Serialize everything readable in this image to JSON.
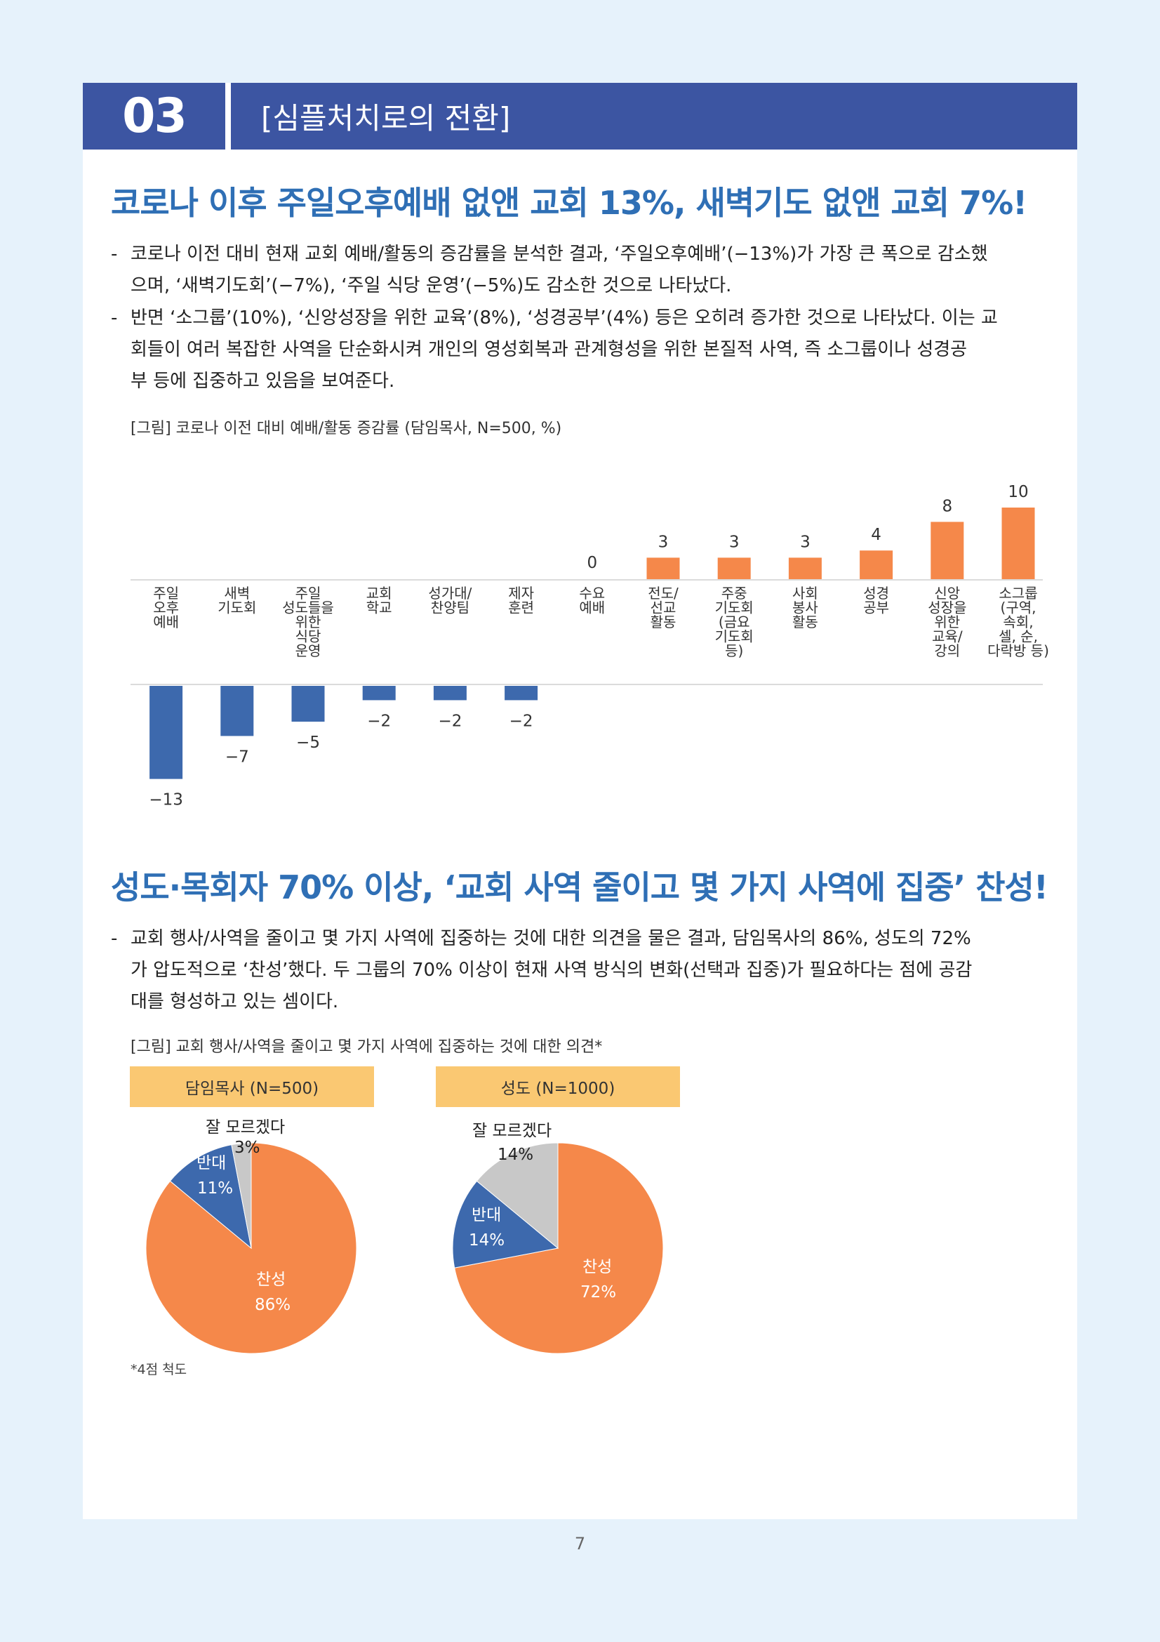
{
  "header": {
    "number": "03",
    "title": "[심플처치로의 전환]"
  },
  "section1": {
    "heading": "코로나 이후 주일오후예배 없앤 교회 13%, 새벽기도 없앤 교회 7%!",
    "bullets": [
      [
        "코로나 이전 대비 현재 교회 예배/활동의 증감률을 분석한 결과, ‘주일오후예배’(−13%)가 가장 큰 폭으로 감소했",
        "으며, ‘새벽기도회’(−7%), ‘주일 식당 운영’(−5%)도 감소한 것으로 나타났다."
      ],
      [
        "반면 ‘소그룹’(10%), ‘신앙성장을 위한 교육’(8%), ‘성경공부’(4%) 등은 오히려 증가한 것으로 나타났다. 이는 교",
        "회들이 여러 복잡한 사역을 단순화시켜 개인의 영성회복과 관계형성을 위한 본질적 사역, 즉 소그룹이나 성경공",
        "부 등에 집중하고 있음을 보여준다."
      ]
    ],
    "figure_caption": "[그림] 코로나 이전 대비 예배/활동 증감률 (담임목사, N=500, %)"
  },
  "chart_data": [
    {
      "type": "bar",
      "title": "[그림] 코로나 이전 대비 예배/활동 증감률 (담임목사, N=500, %)",
      "categories": [
        [
          "주일",
          "오후",
          "예배"
        ],
        [
          "새벽",
          "기도회"
        ],
        [
          "주일",
          "성도들을",
          "위한",
          "식당",
          "운영"
        ],
        [
          "교회",
          "학교"
        ],
        [
          "성가대/",
          "찬양팀"
        ],
        [
          "제자",
          "훈련"
        ],
        [
          "수요",
          "예배"
        ],
        [
          "전도/",
          "선교",
          "활동"
        ],
        [
          "주중",
          "기도회",
          "(금요",
          "기도회",
          "등)"
        ],
        [
          "사회",
          "봉사",
          "활동"
        ],
        [
          "성경",
          "공부"
        ],
        [
          "신앙",
          "성장을",
          "위한",
          "교육/",
          "강의"
        ],
        [
          "소그룹",
          "(구역,",
          "속회,",
          "셀, 순,",
          "다락방 등)"
        ]
      ],
      "values": [
        -13,
        -7,
        -5,
        -2,
        -2,
        -2,
        0,
        3,
        3,
        3,
        4,
        8,
        10
      ],
      "value_labels": [
        "−13",
        "−7",
        "−5",
        "−2",
        "−2",
        "−2",
        "0",
        "3",
        "3",
        "3",
        "4",
        "8",
        "10"
      ],
      "colors": {
        "positive": "#f5884a",
        "negative": "#3d69ad"
      },
      "ylim": [
        -13,
        10
      ]
    },
    {
      "type": "pie",
      "title": "담임목사 (N=500)",
      "slices": [
        {
          "name": "찬성",
          "value": 86,
          "color": "#f5884a"
        },
        {
          "name": "반대",
          "value": 11,
          "color": "#3d69ad"
        },
        {
          "name": "잘 모르겠다",
          "value": 3,
          "color": "#c8c8c8"
        }
      ]
    },
    {
      "type": "pie",
      "title": "성도 (N=1000)",
      "slices": [
        {
          "name": "찬성",
          "value": 72,
          "color": "#f5884a"
        },
        {
          "name": "반대",
          "value": 14,
          "color": "#3d69ad"
        },
        {
          "name": "잘 모르겠다",
          "value": 14,
          "color": "#c8c8c8"
        }
      ]
    }
  ],
  "section2": {
    "heading": "성도·목회자 70% 이상, ‘교회 사역 줄이고 몇 가지 사역에 집중’ 찬성!",
    "bullets": [
      [
        "교회 행사/사역을 줄이고 몇 가지 사역에 집중하는 것에 대한 의견을 물은 결과, 담임목사의 86%, 성도의 72%",
        "가 압도적으로 ‘찬성’했다. 두 그룹의 70% 이상이 현재 사역 방식의 변화(선택과 집중)가 필요하다는 점에 공감",
        "대를 형성하고 있는 셈이다."
      ]
    ],
    "figure_caption": "[그림] 교회 행사/사역을 줄이고 몇 가지 사역에 집중하는 것에 대한 의견*",
    "pie1": {
      "legend": "담임목사 (N=500)",
      "dontknow_label": "잘 모르겠다",
      "dontknow_pct": "3%",
      "against_label": "반대",
      "against_pct": "11%",
      "favor_label": "찬성",
      "favor_pct": "86%"
    },
    "pie2": {
      "legend": "성도 (N=1000)",
      "dontknow_label": "잘 모르겠다",
      "dontknow_pct": "14%",
      "against_label": "반대",
      "against_pct": "14%",
      "favor_label": "찬성",
      "favor_pct": "72%"
    },
    "footnote": "*4점 척도"
  },
  "page_number": "7"
}
